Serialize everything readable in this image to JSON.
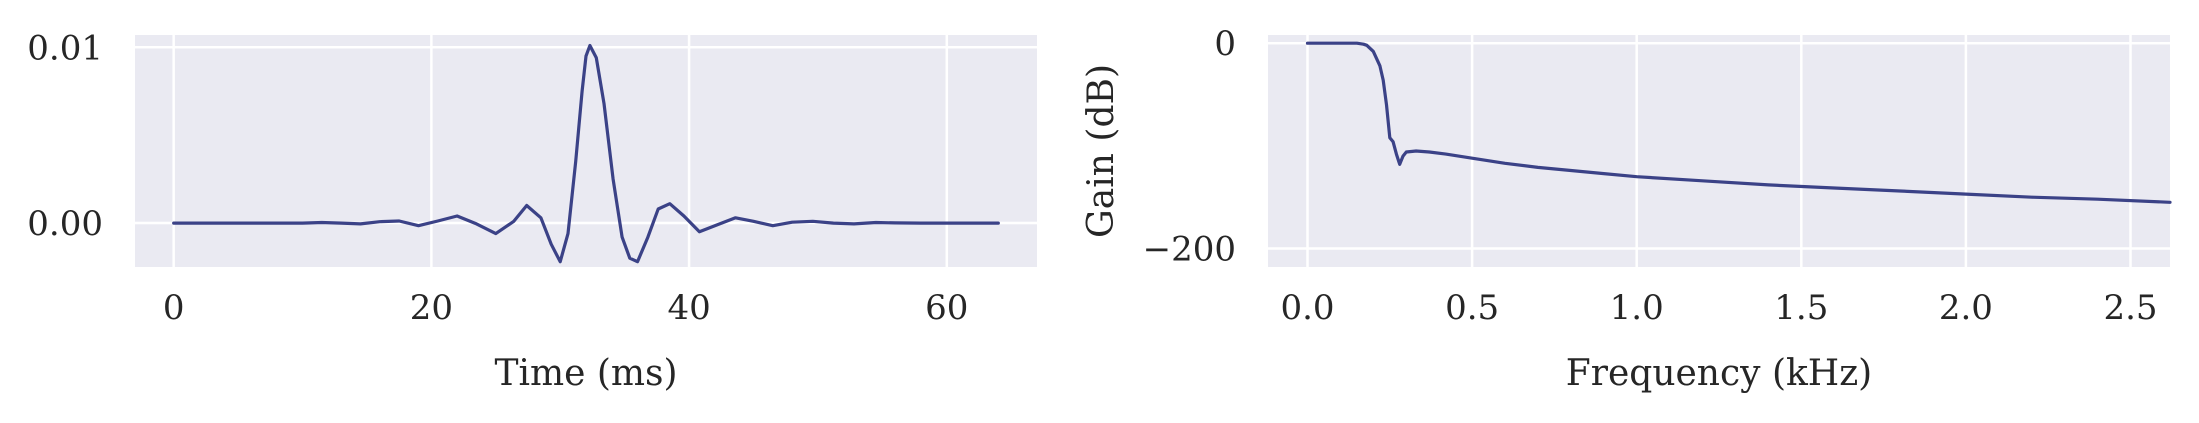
{
  "chart_data": [
    {
      "type": "line",
      "title": "",
      "xlabel": "Time (ms)",
      "ylabel": "",
      "xlim": [
        -3,
        67
      ],
      "ylim": [
        -0.0025,
        0.0107
      ],
      "xticks": [
        0,
        20,
        40,
        60
      ],
      "xtick_labels": [
        "0",
        "20",
        "40",
        "60"
      ],
      "yticks": [
        0,
        0.01
      ],
      "ytick_labels": [
        "0.00",
        "0.01"
      ],
      "grid": true,
      "series": [
        {
          "color": "#3b4287",
          "x": [
            0,
            2,
            4,
            6,
            8,
            10,
            11.5,
            13,
            14.5,
            16,
            17.5,
            19,
            20.5,
            22,
            23.5,
            25,
            26.4,
            27.4,
            28.5,
            29.3,
            30,
            30.6,
            31.2,
            31.7,
            32.0,
            32.3,
            32.8,
            33.4,
            34.1,
            34.8,
            35.4,
            36.0,
            36.8,
            37.6,
            38.5,
            39.6,
            40.8,
            42.2,
            43.6,
            45,
            46.5,
            48,
            49.6,
            51.2,
            52.8,
            54.5,
            56,
            58,
            60,
            62,
            64
          ],
          "y": [
            0,
            0,
            0,
            0,
            0,
            0,
            3e-05,
            0,
            -5e-05,
            8e-05,
            0.00012,
            -0.00015,
            0.00012,
            0.0004,
            -5e-05,
            -0.0006,
            0.0001,
            0.001,
            0.0003,
            -0.0012,
            -0.0022,
            -0.0006,
            0.0035,
            0.0075,
            0.0095,
            0.0101,
            0.0094,
            0.0068,
            0.0025,
            -0.0008,
            -0.002,
            -0.0022,
            -0.0008,
            0.0008,
            0.0011,
            0.0004,
            -0.0005,
            -0.0001,
            0.0003,
            0.0001,
            -0.00015,
            5e-05,
            0.0001,
            0,
            -5e-05,
            3e-05,
            1e-05,
            0,
            0,
            0,
            0
          ]
        }
      ]
    },
    {
      "type": "line",
      "title": "",
      "xlabel": "Frequency (kHz)",
      "ylabel": "Gain (dB)",
      "xlim": [
        -0.12,
        2.62
      ],
      "ylim": [
        -218,
        8
      ],
      "xticks": [
        0,
        0.5,
        1.0,
        1.5,
        2.0,
        2.5
      ],
      "xtick_labels": [
        "0.0",
        "0.5",
        "1.0",
        "1.5",
        "2.0",
        "2.5"
      ],
      "yticks": [
        0,
        -200
      ],
      "ytick_labels": [
        "0",
        "−200"
      ],
      "grid": true,
      "series": [
        {
          "color": "#3b4287",
          "x": [
            0,
            0.05,
            0.1,
            0.15,
            0.17,
            0.18,
            0.2,
            0.22,
            0.23,
            0.24,
            0.25,
            0.26,
            0.27,
            0.28,
            0.29,
            0.3,
            0.33,
            0.37,
            0.42,
            0.5,
            0.6,
            0.7,
            0.8,
            0.9,
            1.0,
            1.2,
            1.4,
            1.6,
            1.8,
            2.0,
            2.2,
            2.4,
            2.62
          ],
          "y": [
            0,
            0,
            0,
            0,
            -1,
            -2,
            -8,
            -22,
            -36,
            -60,
            -92,
            -96,
            -108,
            -118,
            -110,
            -106,
            -105,
            -106,
            -108,
            -112,
            -117,
            -121,
            -124,
            -127,
            -130,
            -134,
            -138,
            -141,
            -144,
            -147,
            -150,
            -152,
            -155
          ]
        }
      ]
    }
  ]
}
